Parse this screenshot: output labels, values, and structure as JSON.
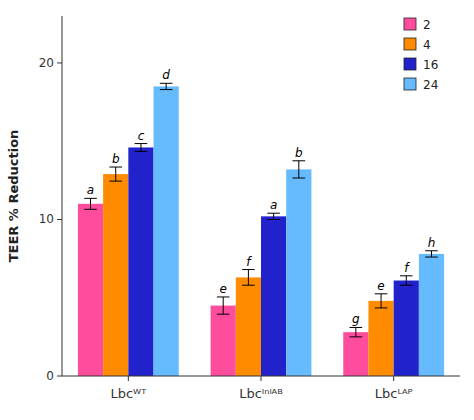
{
  "chart_data": {
    "type": "bar",
    "categories": [
      "Lbcᵂᵀ",
      "Lbcᴵⁿˡᴬᴮ",
      "Lbcᴸᴬᴾ"
    ],
    "series": [
      {
        "name": "2",
        "color": "#FF4D9E",
        "values": [
          11.0,
          4.5,
          2.8
        ],
        "errors": [
          0.35,
          0.55,
          0.3
        ],
        "annotations": [
          "a",
          "e",
          "g"
        ]
      },
      {
        "name": "4",
        "color": "#FF8C00",
        "values": [
          12.9,
          6.3,
          4.8
        ],
        "errors": [
          0.45,
          0.5,
          0.45
        ],
        "annotations": [
          "b",
          "f",
          "e"
        ]
      },
      {
        "name": "16",
        "color": "#2222CC",
        "values": [
          14.6,
          10.2,
          6.1
        ],
        "errors": [
          0.25,
          0.2,
          0.3
        ],
        "annotations": [
          "c",
          "a",
          "f"
        ]
      },
      {
        "name": "24",
        "color": "#66BBFF",
        "values": [
          18.5,
          13.2,
          7.8
        ],
        "errors": [
          0.2,
          0.55,
          0.2
        ],
        "annotations": [
          "d",
          "b",
          "h"
        ]
      }
    ],
    "ylabel": "TEER % Reduction",
    "ylim": [
      0,
      23
    ],
    "yticks": [
      0,
      10,
      20
    ],
    "grid": false,
    "legend": "upper right"
  }
}
